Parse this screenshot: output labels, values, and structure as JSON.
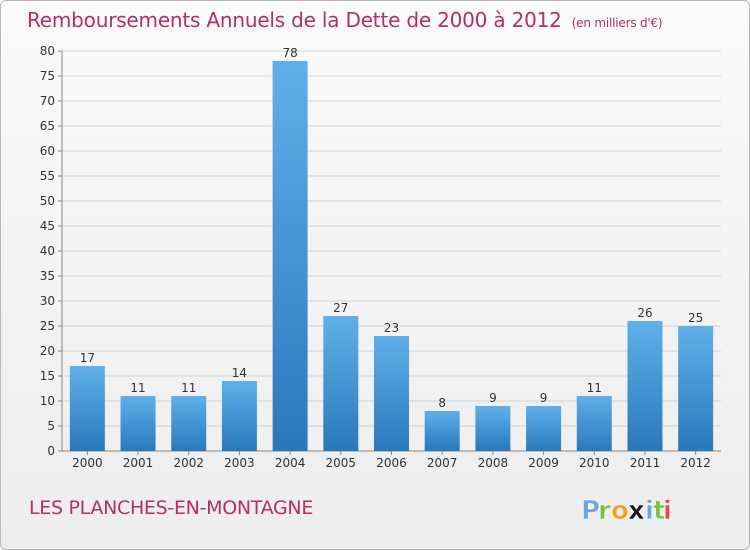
{
  "header": {
    "title": "Remboursements Annuels de la Dette de 2000 à 2012",
    "subtitle": "(en milliers d'€)"
  },
  "footer": {
    "commune": "LES PLANCHES-EN-MONTAGNE"
  },
  "logo": {
    "text": "Proxiti",
    "letters": [
      "P",
      "r",
      "o",
      "x",
      "i",
      "t",
      "i"
    ],
    "colors": [
      "#6fa6d8",
      "#7cc243",
      "#f0a02a",
      "#1a1a1a",
      "#6fa6d8",
      "#7cc243",
      "#e8474f"
    ]
  },
  "colors": {
    "accent": "#b0306a",
    "bar_top": "#5fb0ea",
    "bar_bottom": "#2a78bb"
  },
  "chart_data": {
    "type": "bar",
    "title": "Remboursements Annuels de la Dette de 2000 à 2012",
    "subtitle": "(en milliers d'€)",
    "categories": [
      "2000",
      "2001",
      "2002",
      "2003",
      "2004",
      "2005",
      "2006",
      "2007",
      "2008",
      "2009",
      "2010",
      "2011",
      "2012"
    ],
    "values": [
      17,
      11,
      11,
      14,
      78,
      27,
      23,
      8,
      9,
      9,
      11,
      26,
      25
    ],
    "ylim": [
      0,
      80
    ],
    "yticks": [
      0,
      5,
      10,
      15,
      20,
      25,
      30,
      35,
      40,
      45,
      50,
      55,
      60,
      65,
      70,
      75,
      80
    ],
    "grid": true
  }
}
